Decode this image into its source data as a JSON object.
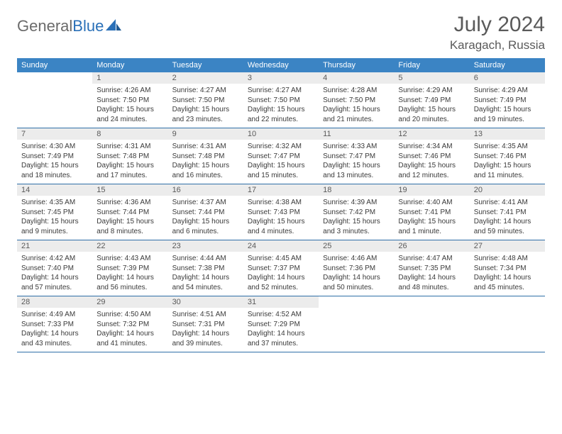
{
  "brand": {
    "part1": "General",
    "part2": "Blue"
  },
  "title": "July 2024",
  "location": "Karagach, Russia",
  "colors": {
    "header_bg": "#3b84c4",
    "divider": "#2f6fa8",
    "daynum_bg": "#ececec",
    "text_gray": "#5a5a5a",
    "body_text": "#3a3a3a",
    "brand_gray": "#6b6b6b",
    "brand_blue": "#2a70b8"
  },
  "dow": [
    "Sunday",
    "Monday",
    "Tuesday",
    "Wednesday",
    "Thursday",
    "Friday",
    "Saturday"
  ],
  "weeks": [
    [
      {
        "n": "",
        "s": "",
        "t": "",
        "d1": "",
        "d2": "",
        "empty": true
      },
      {
        "n": "1",
        "s": "Sunrise: 4:26 AM",
        "t": "Sunset: 7:50 PM",
        "d1": "Daylight: 15 hours",
        "d2": "and 24 minutes."
      },
      {
        "n": "2",
        "s": "Sunrise: 4:27 AM",
        "t": "Sunset: 7:50 PM",
        "d1": "Daylight: 15 hours",
        "d2": "and 23 minutes."
      },
      {
        "n": "3",
        "s": "Sunrise: 4:27 AM",
        "t": "Sunset: 7:50 PM",
        "d1": "Daylight: 15 hours",
        "d2": "and 22 minutes."
      },
      {
        "n": "4",
        "s": "Sunrise: 4:28 AM",
        "t": "Sunset: 7:50 PM",
        "d1": "Daylight: 15 hours",
        "d2": "and 21 minutes."
      },
      {
        "n": "5",
        "s": "Sunrise: 4:29 AM",
        "t": "Sunset: 7:49 PM",
        "d1": "Daylight: 15 hours",
        "d2": "and 20 minutes."
      },
      {
        "n": "6",
        "s": "Sunrise: 4:29 AM",
        "t": "Sunset: 7:49 PM",
        "d1": "Daylight: 15 hours",
        "d2": "and 19 minutes."
      }
    ],
    [
      {
        "n": "7",
        "s": "Sunrise: 4:30 AM",
        "t": "Sunset: 7:49 PM",
        "d1": "Daylight: 15 hours",
        "d2": "and 18 minutes."
      },
      {
        "n": "8",
        "s": "Sunrise: 4:31 AM",
        "t": "Sunset: 7:48 PM",
        "d1": "Daylight: 15 hours",
        "d2": "and 17 minutes."
      },
      {
        "n": "9",
        "s": "Sunrise: 4:31 AM",
        "t": "Sunset: 7:48 PM",
        "d1": "Daylight: 15 hours",
        "d2": "and 16 minutes."
      },
      {
        "n": "10",
        "s": "Sunrise: 4:32 AM",
        "t": "Sunset: 7:47 PM",
        "d1": "Daylight: 15 hours",
        "d2": "and 15 minutes."
      },
      {
        "n": "11",
        "s": "Sunrise: 4:33 AM",
        "t": "Sunset: 7:47 PM",
        "d1": "Daylight: 15 hours",
        "d2": "and 13 minutes."
      },
      {
        "n": "12",
        "s": "Sunrise: 4:34 AM",
        "t": "Sunset: 7:46 PM",
        "d1": "Daylight: 15 hours",
        "d2": "and 12 minutes."
      },
      {
        "n": "13",
        "s": "Sunrise: 4:35 AM",
        "t": "Sunset: 7:46 PM",
        "d1": "Daylight: 15 hours",
        "d2": "and 11 minutes."
      }
    ],
    [
      {
        "n": "14",
        "s": "Sunrise: 4:35 AM",
        "t": "Sunset: 7:45 PM",
        "d1": "Daylight: 15 hours",
        "d2": "and 9 minutes."
      },
      {
        "n": "15",
        "s": "Sunrise: 4:36 AM",
        "t": "Sunset: 7:44 PM",
        "d1": "Daylight: 15 hours",
        "d2": "and 8 minutes."
      },
      {
        "n": "16",
        "s": "Sunrise: 4:37 AM",
        "t": "Sunset: 7:44 PM",
        "d1": "Daylight: 15 hours",
        "d2": "and 6 minutes."
      },
      {
        "n": "17",
        "s": "Sunrise: 4:38 AM",
        "t": "Sunset: 7:43 PM",
        "d1": "Daylight: 15 hours",
        "d2": "and 4 minutes."
      },
      {
        "n": "18",
        "s": "Sunrise: 4:39 AM",
        "t": "Sunset: 7:42 PM",
        "d1": "Daylight: 15 hours",
        "d2": "and 3 minutes."
      },
      {
        "n": "19",
        "s": "Sunrise: 4:40 AM",
        "t": "Sunset: 7:41 PM",
        "d1": "Daylight: 15 hours",
        "d2": "and 1 minute."
      },
      {
        "n": "20",
        "s": "Sunrise: 4:41 AM",
        "t": "Sunset: 7:41 PM",
        "d1": "Daylight: 14 hours",
        "d2": "and 59 minutes."
      }
    ],
    [
      {
        "n": "21",
        "s": "Sunrise: 4:42 AM",
        "t": "Sunset: 7:40 PM",
        "d1": "Daylight: 14 hours",
        "d2": "and 57 minutes."
      },
      {
        "n": "22",
        "s": "Sunrise: 4:43 AM",
        "t": "Sunset: 7:39 PM",
        "d1": "Daylight: 14 hours",
        "d2": "and 56 minutes."
      },
      {
        "n": "23",
        "s": "Sunrise: 4:44 AM",
        "t": "Sunset: 7:38 PM",
        "d1": "Daylight: 14 hours",
        "d2": "and 54 minutes."
      },
      {
        "n": "24",
        "s": "Sunrise: 4:45 AM",
        "t": "Sunset: 7:37 PM",
        "d1": "Daylight: 14 hours",
        "d2": "and 52 minutes."
      },
      {
        "n": "25",
        "s": "Sunrise: 4:46 AM",
        "t": "Sunset: 7:36 PM",
        "d1": "Daylight: 14 hours",
        "d2": "and 50 minutes."
      },
      {
        "n": "26",
        "s": "Sunrise: 4:47 AM",
        "t": "Sunset: 7:35 PM",
        "d1": "Daylight: 14 hours",
        "d2": "and 48 minutes."
      },
      {
        "n": "27",
        "s": "Sunrise: 4:48 AM",
        "t": "Sunset: 7:34 PM",
        "d1": "Daylight: 14 hours",
        "d2": "and 45 minutes."
      }
    ],
    [
      {
        "n": "28",
        "s": "Sunrise: 4:49 AM",
        "t": "Sunset: 7:33 PM",
        "d1": "Daylight: 14 hours",
        "d2": "and 43 minutes."
      },
      {
        "n": "29",
        "s": "Sunrise: 4:50 AM",
        "t": "Sunset: 7:32 PM",
        "d1": "Daylight: 14 hours",
        "d2": "and 41 minutes."
      },
      {
        "n": "30",
        "s": "Sunrise: 4:51 AM",
        "t": "Sunset: 7:31 PM",
        "d1": "Daylight: 14 hours",
        "d2": "and 39 minutes."
      },
      {
        "n": "31",
        "s": "Sunrise: 4:52 AM",
        "t": "Sunset: 7:29 PM",
        "d1": "Daylight: 14 hours",
        "d2": "and 37 minutes."
      },
      {
        "n": "",
        "s": "",
        "t": "",
        "d1": "",
        "d2": "",
        "empty": true
      },
      {
        "n": "",
        "s": "",
        "t": "",
        "d1": "",
        "d2": "",
        "empty": true
      },
      {
        "n": "",
        "s": "",
        "t": "",
        "d1": "",
        "d2": "",
        "empty": true
      }
    ]
  ]
}
